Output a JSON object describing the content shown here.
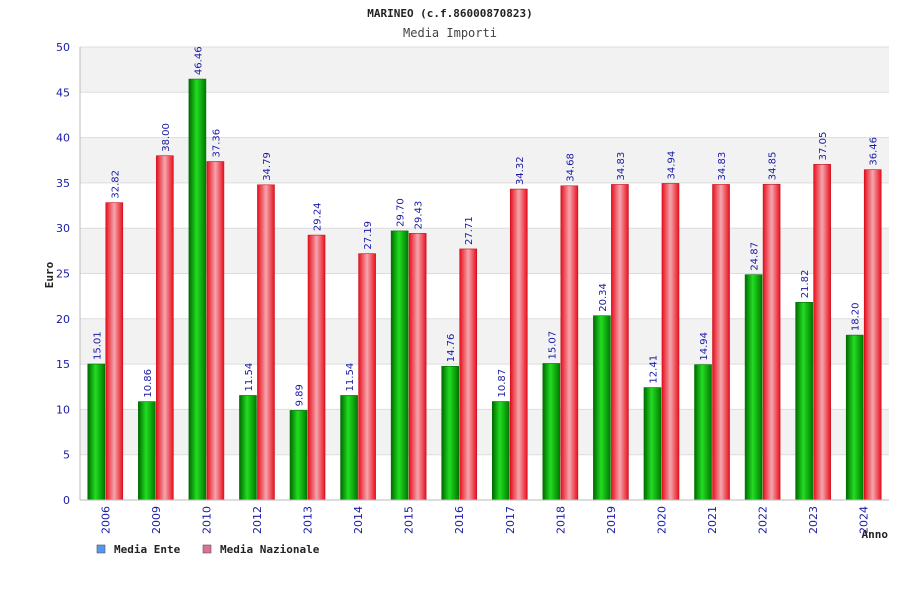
{
  "chart_data": {
    "type": "bar",
    "title": "MARINEO (c.f.86000870823)",
    "subtitle": "Media Importi",
    "xlabel": "Anno",
    "ylabel": "Euro",
    "ylim": [
      0,
      50
    ],
    "yticks": [
      0,
      5,
      10,
      15,
      20,
      25,
      30,
      35,
      40,
      45,
      50
    ],
    "grid": true,
    "legend_position": "bottom-left",
    "categories": [
      "2006",
      "2009",
      "2010",
      "2012",
      "2013",
      "2014",
      "2015",
      "2016",
      "2017",
      "2018",
      "2019",
      "2020",
      "2021",
      "2022",
      "2023",
      "2024"
    ],
    "series": [
      {
        "name": "Media Ente",
        "color": "#00b000",
        "legend_color": "#5599ee",
        "values": [
          15.01,
          10.86,
          46.46,
          11.54,
          9.89,
          11.54,
          29.7,
          14.76,
          10.87,
          15.07,
          20.34,
          12.41,
          14.94,
          24.87,
          21.82,
          18.2
        ],
        "labels": [
          "15.01",
          "10.86",
          "46.46",
          "11.54",
          "9.89",
          "11.54",
          "29.70",
          "14.76",
          "10.87",
          "15.07",
          "20.34",
          "12.41",
          "14.94",
          "24.87",
          "21.82",
          "18.20"
        ]
      },
      {
        "name": "Media Nazionale",
        "color": "#e02020",
        "legend_color": "#e07090",
        "values": [
          32.82,
          38.0,
          37.36,
          34.79,
          29.24,
          27.19,
          29.43,
          27.71,
          34.32,
          34.68,
          34.83,
          34.94,
          34.83,
          34.85,
          37.05,
          36.46
        ],
        "labels": [
          "32.82",
          "38.00",
          "37.36",
          "34.79",
          "29.24",
          "27.19",
          "29.43",
          "27.71",
          "34.32",
          "34.68",
          "34.83",
          "34.94",
          "34.83",
          "34.85",
          "37.05",
          "36.46"
        ]
      }
    ]
  }
}
